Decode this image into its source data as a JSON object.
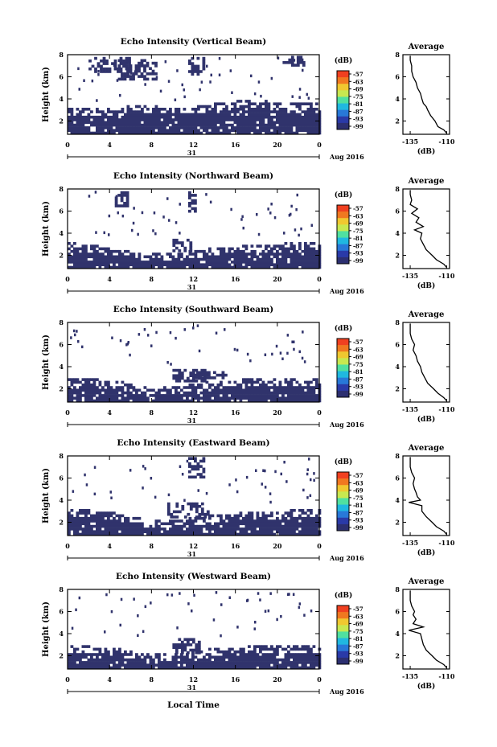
{
  "figure": {
    "xlabel": "Local Time",
    "date_label": "Aug 2016",
    "day_label": "31",
    "colorbar_unit": "(dB)",
    "colorbar_ticks": [
      "-57",
      "-63",
      "-69",
      "-75",
      "-81",
      "-87",
      "-93",
      "-99"
    ],
    "colorbar_colors": [
      "#f04020",
      "#f07820",
      "#f0c830",
      "#c8e850",
      "#50e0a0",
      "#20b8e0",
      "#2878d8",
      "#2a3aa8",
      "#2c2f70"
    ],
    "echo_color": "#30336c"
  },
  "chart_data": [
    {
      "type": "heatmap",
      "title": "Echo Intensity (Vertical Beam)",
      "ylabel": "Height (km)",
      "xticks": [
        "0",
        "4",
        "8",
        "12",
        "16",
        "20",
        "0"
      ],
      "yticks": [
        "2",
        "4",
        "6",
        "8"
      ],
      "xlim": [
        0,
        24
      ],
      "ylim": [
        0.8,
        8
      ],
      "lower_band_top_km": [
        3.0,
        3.0,
        3.0,
        3.0,
        3.0,
        3.1,
        3.3,
        3.4,
        3.3,
        3.2,
        3.2,
        3.2,
        3.2,
        3.3,
        3.5,
        3.6,
        3.7,
        3.7,
        3.7,
        3.7,
        3.6,
        3.5,
        3.5,
        3.5,
        3.5
      ],
      "upper_echo_segments": [
        {
          "t": [
            2.0,
            6.0
          ],
          "h": [
            6.5,
            7.8
          ]
        },
        {
          "t": [
            4.8,
            8.5
          ],
          "h": [
            5.8,
            7.6
          ]
        },
        {
          "t": [
            11.5,
            13.0
          ],
          "h": [
            6.2,
            7.8
          ]
        },
        {
          "t": [
            20.5,
            22.5
          ],
          "h": [
            7.0,
            7.9
          ]
        }
      ],
      "average_profile": {
        "title": "Average",
        "xlabel": "(dB)",
        "xticks": [
          "-135",
          "-110"
        ],
        "xlim": [
          -140,
          -108
        ],
        "yticks": [
          "2",
          "4",
          "6",
          "8"
        ],
        "height_km": [
          0.9,
          1.2,
          1.5,
          2.0,
          2.5,
          3.0,
          3.3,
          3.6,
          4.0,
          4.5,
          5.0,
          5.5,
          6.0,
          6.5,
          7.0,
          7.5,
          7.9
        ],
        "mean_db": [
          -110,
          -112,
          -116,
          -118,
          -121,
          -123,
          -124,
          -126,
          -127,
          -128,
          -130,
          -131,
          -133,
          -134,
          -134,
          -135,
          -135
        ]
      }
    },
    {
      "type": "heatmap",
      "title": "Echo Intensity (Northward Beam)",
      "ylabel": "Height (km)",
      "xticks": [
        "0",
        "4",
        "8",
        "12",
        "16",
        "20",
        "0"
      ],
      "yticks": [
        "2",
        "4",
        "6",
        "8"
      ],
      "xlim": [
        0,
        24
      ],
      "ylim": [
        0.8,
        8
      ],
      "lower_band_top_km": [
        3.0,
        3.0,
        2.9,
        2.7,
        2.6,
        2.4,
        2.2,
        2.0,
        2.0,
        2.1,
        2.1,
        2.2,
        2.3,
        2.5,
        2.6,
        2.7,
        2.7,
        2.8,
        2.8,
        2.9,
        2.9,
        3.0,
        3.0,
        3.0,
        3.0
      ],
      "upper_echo_segments": [
        {
          "t": [
            10.0,
            11.8
          ],
          "h": [
            2.4,
            3.5
          ]
        },
        {
          "t": [
            4.5,
            5.8
          ],
          "h": [
            6.5,
            7.8
          ]
        },
        {
          "t": [
            11.5,
            12.2
          ],
          "h": [
            6.0,
            7.8
          ]
        }
      ],
      "average_profile": {
        "title": "Average",
        "xlabel": "(dB)",
        "xticks": [
          "-135",
          "-110"
        ],
        "xlim": [
          -140,
          -108
        ],
        "yticks": [
          "2",
          "4",
          "6",
          "8"
        ],
        "height_km": [
          0.9,
          1.2,
          1.6,
          2.0,
          2.5,
          3.0,
          3.5,
          4.0,
          4.3,
          4.6,
          5.0,
          5.4,
          5.8,
          6.2,
          6.6,
          7.0,
          7.5,
          7.9
        ],
        "mean_db": [
          -110,
          -112,
          -117,
          -120,
          -124,
          -126,
          -128,
          -127,
          -132,
          -126,
          -131,
          -129,
          -134,
          -130,
          -135,
          -134,
          -135,
          -135
        ]
      }
    },
    {
      "type": "heatmap",
      "title": "Echo Intensity (Southward Beam)",
      "ylabel": "Height (km)",
      "xticks": [
        "0",
        "4",
        "8",
        "12",
        "16",
        "20",
        "0"
      ],
      "yticks": [
        "2",
        "4",
        "6",
        "8"
      ],
      "xlim": [
        0,
        24
      ],
      "ylim": [
        0.8,
        8
      ],
      "lower_band_top_km": [
        2.8,
        2.8,
        2.8,
        2.7,
        2.6,
        2.5,
        2.3,
        2.1,
        2.0,
        2.0,
        2.1,
        2.2,
        2.3,
        2.5,
        2.6,
        2.7,
        2.7,
        2.8,
        2.8,
        2.9,
        2.9,
        2.9,
        2.9,
        2.9,
        2.9
      ],
      "upper_echo_segments": [
        {
          "t": [
            10.0,
            13.0
          ],
          "h": [
            2.6,
            3.8
          ]
        },
        {
          "t": [
            12.0,
            15.0
          ],
          "h": [
            3.0,
            3.6
          ]
        }
      ],
      "average_profile": {
        "title": "Average",
        "xlabel": "(dB)",
        "xticks": [
          "-135",
          "-110"
        ],
        "xlim": [
          -140,
          -108
        ],
        "yticks": [
          "2",
          "4",
          "6",
          "8"
        ],
        "height_km": [
          0.9,
          1.2,
          1.6,
          2.0,
          2.5,
          3.0,
          3.5,
          4.0,
          4.5,
          5.0,
          5.5,
          6.0,
          6.5,
          7.0,
          7.5,
          7.9
        ],
        "mean_db": [
          -110,
          -112,
          -116,
          -119,
          -123,
          -125,
          -127,
          -128,
          -130,
          -131,
          -133,
          -132,
          -134,
          -135,
          -135,
          -135
        ]
      }
    },
    {
      "type": "heatmap",
      "title": "Echo Intensity (Eastward Beam)",
      "ylabel": "Height (km)",
      "xticks": [
        "0",
        "4",
        "8",
        "12",
        "16",
        "20",
        "0"
      ],
      "yticks": [
        "2",
        "4",
        "6",
        "8"
      ],
      "xlim": [
        0,
        24
      ],
      "ylim": [
        0.8,
        8
      ],
      "lower_band_top_km": [
        3.0,
        3.0,
        3.0,
        2.9,
        2.8,
        2.6,
        2.4,
        2.2,
        2.1,
        2.1,
        2.2,
        2.2,
        2.3,
        2.5,
        2.6,
        2.7,
        2.7,
        2.8,
        2.8,
        2.9,
        2.9,
        3.0,
        3.0,
        3.0,
        3.0
      ],
      "upper_echo_segments": [
        {
          "t": [
            9.5,
            13.5
          ],
          "h": [
            2.4,
            3.8
          ]
        },
        {
          "t": [
            11.5,
            13.0
          ],
          "h": [
            6.0,
            7.9
          ]
        }
      ],
      "average_profile": {
        "title": "Average",
        "xlabel": "(dB)",
        "xticks": [
          "-135",
          "-110"
        ],
        "xlim": [
          -140,
          -108
        ],
        "yticks": [
          "2",
          "4",
          "6",
          "8"
        ],
        "height_km": [
          0.9,
          1.2,
          1.6,
          2.0,
          2.5,
          3.0,
          3.5,
          3.8,
          4.0,
          4.3,
          4.7,
          5.0,
          5.5,
          6.0,
          6.5,
          7.0,
          7.5,
          7.9
        ],
        "mean_db": [
          -110,
          -112,
          -117,
          -120,
          -124,
          -127,
          -127,
          -136,
          -128,
          -130,
          -131,
          -132,
          -133,
          -132,
          -134,
          -135,
          -135,
          -135
        ]
      }
    },
    {
      "type": "heatmap",
      "title": "Echo Intensity (Westward Beam)",
      "ylabel": "Height (km)",
      "xticks": [
        "0",
        "4",
        "8",
        "12",
        "16",
        "20",
        "0"
      ],
      "yticks": [
        "2",
        "4",
        "6",
        "8"
      ],
      "xlim": [
        0,
        24
      ],
      "ylim": [
        0.8,
        8
      ],
      "lower_band_top_km": [
        2.8,
        2.8,
        2.8,
        2.7,
        2.6,
        2.5,
        2.3,
        2.1,
        2.0,
        2.0,
        2.1,
        2.2,
        2.3,
        2.5,
        2.6,
        2.7,
        2.7,
        2.8,
        2.8,
        2.8,
        2.9,
        2.9,
        2.9,
        2.9,
        2.9
      ],
      "upper_echo_segments": [
        {
          "t": [
            10.0,
            12.5
          ],
          "h": [
            2.4,
            3.6
          ]
        }
      ],
      "average_profile": {
        "title": "Average",
        "xlabel": "(dB)",
        "xticks": [
          "-135",
          "-110"
        ],
        "xlim": [
          -140,
          -108
        ],
        "yticks": [
          "2",
          "4",
          "6",
          "8"
        ],
        "height_km": [
          0.9,
          1.2,
          1.6,
          2.0,
          2.5,
          3.0,
          3.5,
          4.0,
          4.3,
          4.6,
          4.9,
          5.3,
          5.7,
          6.0,
          6.5,
          7.0,
          7.5,
          7.9
        ],
        "mean_db": [
          -110,
          -112,
          -117,
          -120,
          -124,
          -126,
          -127,
          -128,
          -136,
          -126,
          -133,
          -131,
          -133,
          -132,
          -134,
          -135,
          -135,
          -135
        ]
      }
    }
  ]
}
